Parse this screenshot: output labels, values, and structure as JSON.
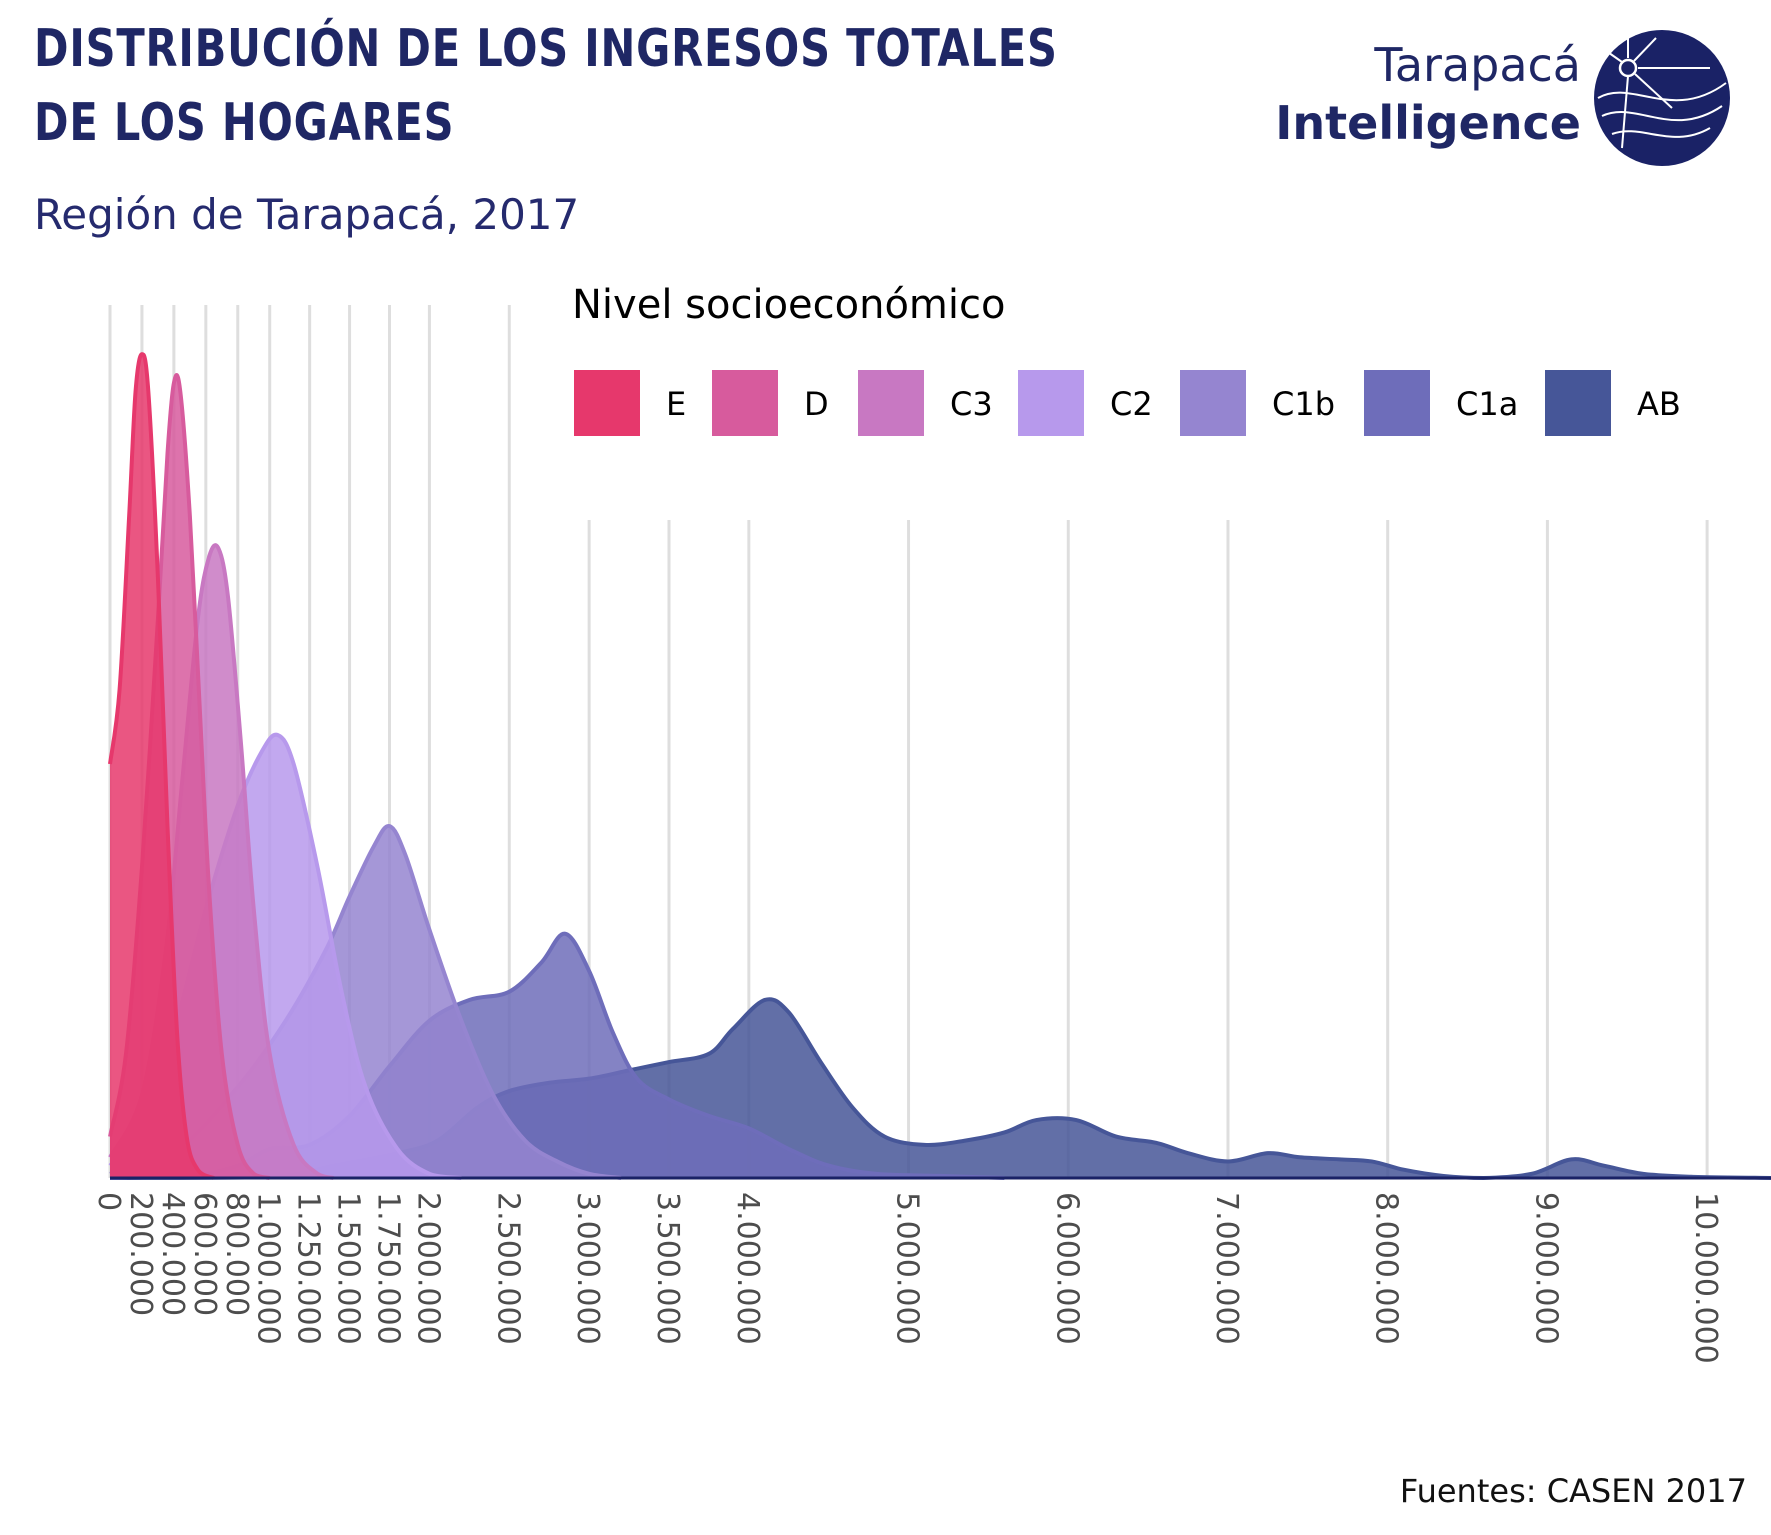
{
  "header": {
    "title_line1": "DISTRIBUCIÓN DE LOS INGRESOS TOTALES",
    "title_line2": "DE LOS HOGARES",
    "subtitle": "Región de Tarapacá, 2017"
  },
  "brand": {
    "line1": "Tarapacá",
    "line2": "Intelligence",
    "color": "#1a2266"
  },
  "source": "Fuentes: CASEN 2017",
  "chart_data": {
    "type": "area",
    "subtype": "density",
    "xlim": [
      0,
      10400000
    ],
    "x_ticks": [
      {
        "value": 0,
        "label": "0"
      },
      {
        "value": 200000,
        "label": "200.000"
      },
      {
        "value": 400000,
        "label": "400.000"
      },
      {
        "value": 600000,
        "label": "600.000"
      },
      {
        "value": 800000,
        "label": "800.000"
      },
      {
        "value": 1000000,
        "label": "1.000.000"
      },
      {
        "value": 1250000,
        "label": "1.250.000"
      },
      {
        "value": 1500000,
        "label": "1.500.000"
      },
      {
        "value": 1750000,
        "label": "1.750.000"
      },
      {
        "value": 2000000,
        "label": "2.000.000"
      },
      {
        "value": 2500000,
        "label": "2.500.000"
      },
      {
        "value": 3000000,
        "label": "3.000.000"
      },
      {
        "value": 3500000,
        "label": "3.500.000"
      },
      {
        "value": 4000000,
        "label": "4.000.000"
      },
      {
        "value": 5000000,
        "label": "5.000.000"
      },
      {
        "value": 6000000,
        "label": "6.000.000"
      },
      {
        "value": 7000000,
        "label": "7.000.000"
      },
      {
        "value": 8000000,
        "label": "8.000.000"
      },
      {
        "value": 9000000,
        "label": "9.000.000"
      },
      {
        "value": 10000000,
        "label": "10.000.000"
      }
    ],
    "grid": "vertical",
    "legend": {
      "title": "Nivel socioeconómico",
      "position": "top",
      "entries": [
        "E",
        "D",
        "C3",
        "C2",
        "C1b",
        "C1a",
        "AB"
      ]
    },
    "series": [
      {
        "name": "E",
        "color": "#e6386c",
        "points": [
          [
            0,
            1.0
          ],
          [
            60000,
            1.18
          ],
          [
            120000,
            1.6
          ],
          [
            160000,
            1.9
          ],
          [
            200000,
            1.99
          ],
          [
            240000,
            1.9
          ],
          [
            300000,
            1.45
          ],
          [
            360000,
            0.85
          ],
          [
            420000,
            0.35
          ],
          [
            480000,
            0.1
          ],
          [
            550000,
            0.02
          ],
          [
            650000,
            0
          ]
        ]
      },
      {
        "name": "D",
        "color": "#d75b9d",
        "points": [
          [
            0,
            0.1
          ],
          [
            100000,
            0.3
          ],
          [
            200000,
            0.75
          ],
          [
            300000,
            1.35
          ],
          [
            360000,
            1.75
          ],
          [
            400000,
            1.92
          ],
          [
            440000,
            1.9
          ],
          [
            500000,
            1.6
          ],
          [
            560000,
            1.15
          ],
          [
            620000,
            0.7
          ],
          [
            700000,
            0.3
          ],
          [
            800000,
            0.08
          ],
          [
            900000,
            0.01
          ],
          [
            1000000,
            0
          ]
        ]
      },
      {
        "name": "C3",
        "color": "#c878c2",
        "points": [
          [
            0,
            0.05
          ],
          [
            200000,
            0.2
          ],
          [
            350000,
            0.55
          ],
          [
            450000,
            0.95
          ],
          [
            550000,
            1.35
          ],
          [
            620000,
            1.5
          ],
          [
            680000,
            1.52
          ],
          [
            740000,
            1.4
          ],
          [
            820000,
            1.05
          ],
          [
            900000,
            0.65
          ],
          [
            1000000,
            0.3
          ],
          [
            1150000,
            0.08
          ],
          [
            1300000,
            0.01
          ],
          [
            1400000,
            0
          ]
        ]
      },
      {
        "name": "C2",
        "color": "#b799ec",
        "points": [
          [
            0,
            0.03
          ],
          [
            200000,
            0.12
          ],
          [
            400000,
            0.35
          ],
          [
            600000,
            0.65
          ],
          [
            800000,
            0.9
          ],
          [
            950000,
            1.03
          ],
          [
            1050000,
            1.07
          ],
          [
            1150000,
            1.0
          ],
          [
            1300000,
            0.75
          ],
          [
            1450000,
            0.45
          ],
          [
            1600000,
            0.22
          ],
          [
            1800000,
            0.07
          ],
          [
            2000000,
            0.01
          ],
          [
            2200000,
            0
          ]
        ]
      },
      {
        "name": "C1b",
        "color": "#9585d0",
        "points": [
          [
            0,
            0.01
          ],
          [
            400000,
            0.06
          ],
          [
            800000,
            0.22
          ],
          [
            1100000,
            0.38
          ],
          [
            1350000,
            0.55
          ],
          [
            1500000,
            0.68
          ],
          [
            1650000,
            0.8
          ],
          [
            1750000,
            0.85
          ],
          [
            1850000,
            0.78
          ],
          [
            2000000,
            0.6
          ],
          [
            2200000,
            0.38
          ],
          [
            2400000,
            0.2
          ],
          [
            2600000,
            0.09
          ],
          [
            2800000,
            0.04
          ],
          [
            3000000,
            0.01
          ],
          [
            3200000,
            0
          ]
        ]
      },
      {
        "name": "C1a",
        "color": "#6e6dba",
        "points": [
          [
            0,
            0
          ],
          [
            500000,
            0.005
          ],
          [
            800000,
            0.03
          ],
          [
            1000000,
            0.07
          ],
          [
            1250000,
            0.08
          ],
          [
            1500000,
            0.15
          ],
          [
            1750000,
            0.27
          ],
          [
            2000000,
            0.38
          ],
          [
            2250000,
            0.43
          ],
          [
            2500000,
            0.45
          ],
          [
            2700000,
            0.52
          ],
          [
            2850000,
            0.59
          ],
          [
            3000000,
            0.5
          ],
          [
            3150000,
            0.35
          ],
          [
            3300000,
            0.24
          ],
          [
            3500000,
            0.19
          ],
          [
            3750000,
            0.15
          ],
          [
            4000000,
            0.12
          ],
          [
            4250000,
            0.07
          ],
          [
            4500000,
            0.03
          ],
          [
            4800000,
            0.01
          ],
          [
            5200000,
            0.005
          ],
          [
            5600000,
            0
          ]
        ]
      },
      {
        "name": "AB",
        "color": "#465698",
        "points": [
          [
            0,
            0
          ],
          [
            1000000,
            0.002
          ],
          [
            1400000,
            0.03
          ],
          [
            1800000,
            0.06
          ],
          [
            2050000,
            0.09
          ],
          [
            2300000,
            0.17
          ],
          [
            2500000,
            0.21
          ],
          [
            2750000,
            0.23
          ],
          [
            3000000,
            0.24
          ],
          [
            3250000,
            0.26
          ],
          [
            3500000,
            0.28
          ],
          [
            3750000,
            0.3
          ],
          [
            3900000,
            0.36
          ],
          [
            4100000,
            0.43
          ],
          [
            4250000,
            0.4
          ],
          [
            4450000,
            0.28
          ],
          [
            4650000,
            0.17
          ],
          [
            4850000,
            0.1
          ],
          [
            5100000,
            0.08
          ],
          [
            5350000,
            0.09
          ],
          [
            5600000,
            0.11
          ],
          [
            5800000,
            0.14
          ],
          [
            6050000,
            0.14
          ],
          [
            6300000,
            0.1
          ],
          [
            6550000,
            0.085
          ],
          [
            6750000,
            0.06
          ],
          [
            7000000,
            0.04
          ],
          [
            7250000,
            0.06
          ],
          [
            7450000,
            0.05
          ],
          [
            7700000,
            0.045
          ],
          [
            7900000,
            0.04
          ],
          [
            8100000,
            0.02
          ],
          [
            8350000,
            0.005
          ],
          [
            8600000,
            0
          ],
          [
            8900000,
            0.01
          ],
          [
            9150000,
            0.045
          ],
          [
            9350000,
            0.03
          ],
          [
            9600000,
            0.01
          ],
          [
            9900000,
            0.003
          ],
          [
            10400000,
            0
          ]
        ]
      }
    ]
  }
}
